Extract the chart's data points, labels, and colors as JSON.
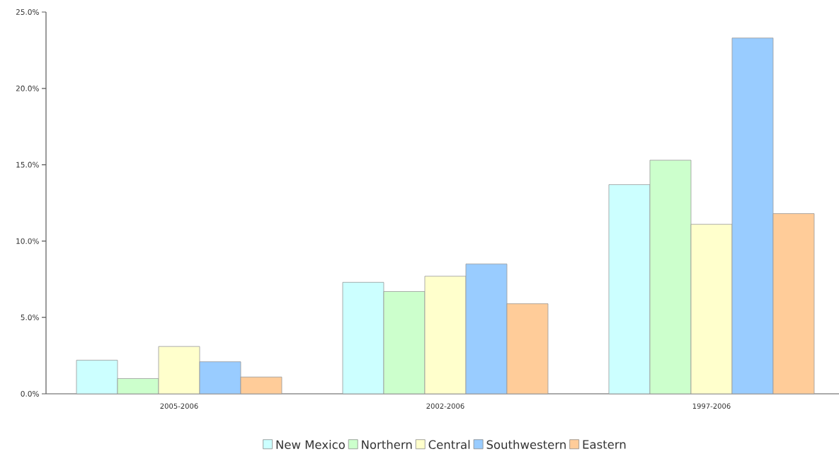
{
  "chart_data": {
    "type": "bar",
    "categories": [
      "2005-2006",
      "2002-2006",
      "1997-2006"
    ],
    "series": [
      {
        "name": "New Mexico",
        "color": "#ccffff",
        "values": [
          2.2,
          7.3,
          13.7
        ]
      },
      {
        "name": "Northern",
        "color": "#ccffcc",
        "values": [
          1.0,
          6.7,
          15.3
        ]
      },
      {
        "name": "Central",
        "color": "#ffffcc",
        "values": [
          3.1,
          7.7,
          11.1
        ]
      },
      {
        "name": "Southwestern",
        "color": "#99ccff",
        "values": [
          2.1,
          8.5,
          23.3
        ]
      },
      {
        "name": "Eastern",
        "color": "#ffcc99",
        "values": [
          1.1,
          5.9,
          11.8
        ]
      }
    ],
    "ylim": [
      0,
      25
    ],
    "yticks": [
      {
        "value": 0,
        "label": "0.0%"
      },
      {
        "value": 5,
        "label": "5.0%"
      },
      {
        "value": 10,
        "label": "10.0%"
      },
      {
        "value": 15,
        "label": "15.0%"
      },
      {
        "value": 20,
        "label": "20.0%"
      },
      {
        "value": 25,
        "label": "25.0%"
      }
    ],
    "grid": false,
    "legend": "bottom"
  }
}
